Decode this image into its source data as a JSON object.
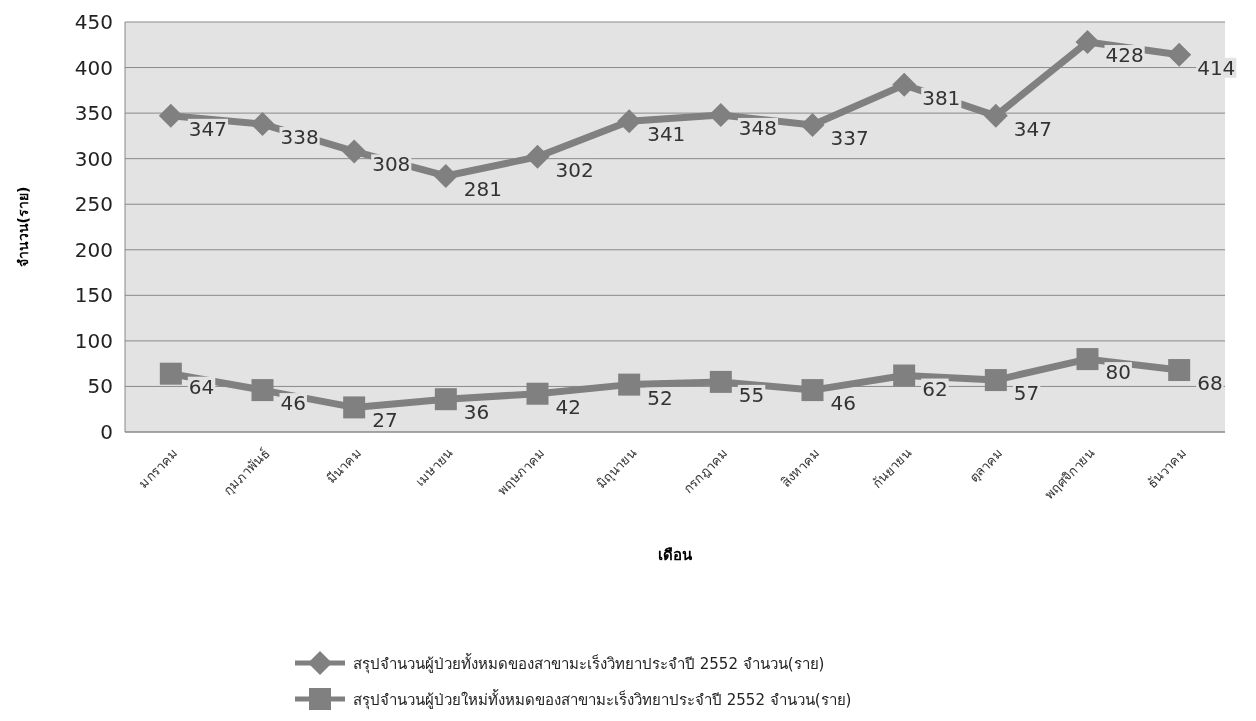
{
  "chart_data": {
    "type": "line",
    "xlabel": "เดือน",
    "ylabel": "จำนวน(ราย)",
    "categories": [
      "มกราคม",
      "กุมภาพันธ์",
      "มีนาคม",
      "เมษายน",
      "พฤษภาคม",
      "มิถุนายน",
      "กรกฎาคม",
      "สิงหาคม",
      "กันยายน",
      "ตุลาคม",
      "พฤศจิกายน",
      "ธันวาคม"
    ],
    "series": [
      {
        "name": "สรุปจำนวนผู้ป่วยทั้งหมดของสาขามะเร็งวิทยาประจำปี 2552 จำนวน(ราย)",
        "color": "#808080",
        "marker": "diamond",
        "values": [
          347,
          338,
          308,
          281,
          302,
          341,
          348,
          337,
          381,
          347,
          428,
          414
        ]
      },
      {
        "name": "สรุปจำนวนผู้ป่วยใหม่ทั้งหมดของสาขามะเร็งวิทยาประจำปี 2552 จำนวน(ราย)",
        "color": "#808080",
        "marker": "square",
        "values": [
          64,
          46,
          27,
          36,
          42,
          52,
          55,
          46,
          62,
          57,
          80,
          68
        ]
      }
    ],
    "ylim": [
      0,
      450
    ],
    "yticks": [
      0,
      50,
      100,
      150,
      200,
      250,
      300,
      350,
      400,
      450
    ],
    "grid": "y",
    "legend": "bottom",
    "data_labels": true,
    "line_style": "solid"
  }
}
